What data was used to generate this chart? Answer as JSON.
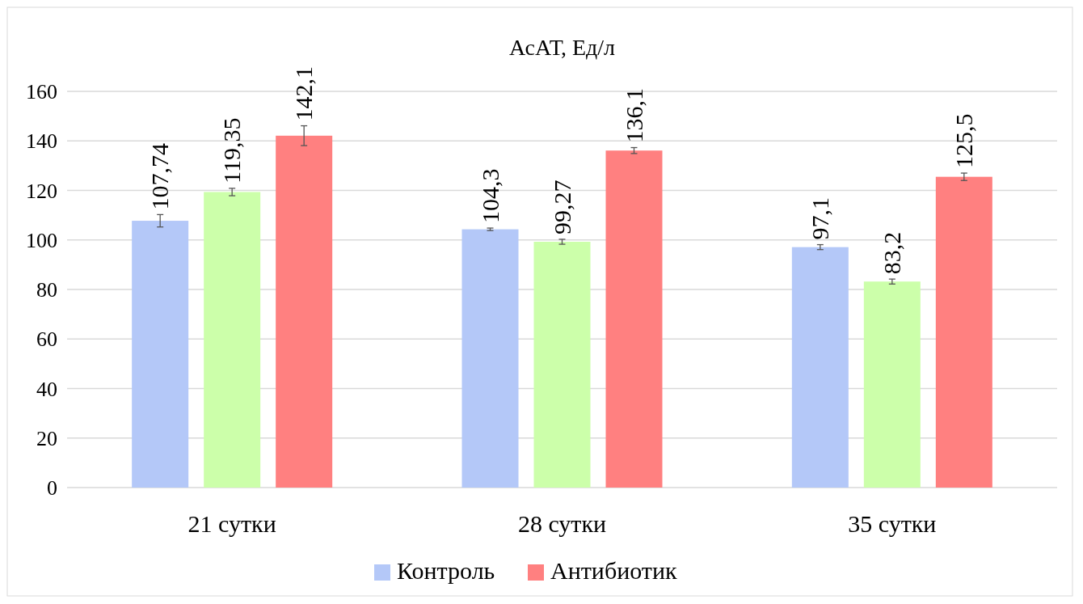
{
  "chart_data": {
    "type": "bar",
    "title": "АсАТ, Ед/л",
    "categories": [
      "21 сутки",
      "28 сутки",
      "35 сутки"
    ],
    "series": [
      {
        "name": "Контроль",
        "color": "#b4c8f8",
        "values": [
          107.74,
          104.3,
          97.1
        ],
        "errors": [
          2.5,
          0.5,
          1
        ],
        "value_labels": [
          "107,74",
          "104,3",
          "97,1"
        ]
      },
      {
        "color": "#ccffaa",
        "values": [
          119.35,
          99.27,
          83.2
        ],
        "errors": [
          1.5,
          1,
          1
        ],
        "value_labels": [
          "119,35",
          "99,27",
          "83,2"
        ]
      },
      {
        "name": "Антибиотик",
        "color": "#ff8080",
        "values": [
          142.1,
          136.1,
          125.5
        ],
        "errors": [
          4,
          1.2,
          1.5
        ],
        "value_labels": [
          "142,1",
          "136,1",
          "125,5"
        ]
      }
    ],
    "ylim": [
      0,
      160
    ],
    "yticks": [
      0,
      20,
      40,
      60,
      80,
      100,
      120,
      140,
      160
    ],
    "grid": "y",
    "legend": "bottom"
  }
}
